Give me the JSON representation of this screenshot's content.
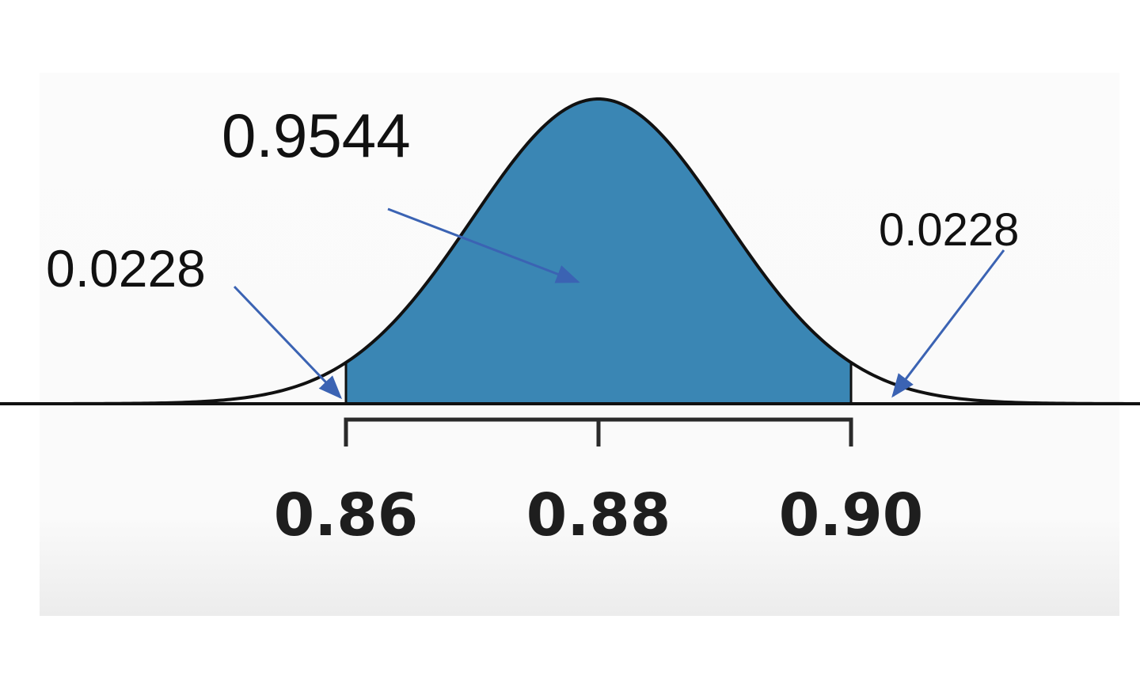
{
  "chart_data": {
    "type": "area",
    "distribution": "normal",
    "mean": 0.88,
    "sd": 0.01,
    "shaded_interval": [
      0.86,
      0.9
    ],
    "x_ticks": [
      {
        "value": 0.86,
        "label": "0.86"
      },
      {
        "value": 0.88,
        "label": "0.88"
      },
      {
        "value": 0.9,
        "label": "0.90"
      }
    ],
    "annotations": {
      "center_area": "0.9544",
      "left_tail": "0.0228",
      "right_tail": "0.0228"
    },
    "colors": {
      "fill": "#3a86b4",
      "curve": "#111111",
      "arrow": "#3b63b3"
    }
  }
}
